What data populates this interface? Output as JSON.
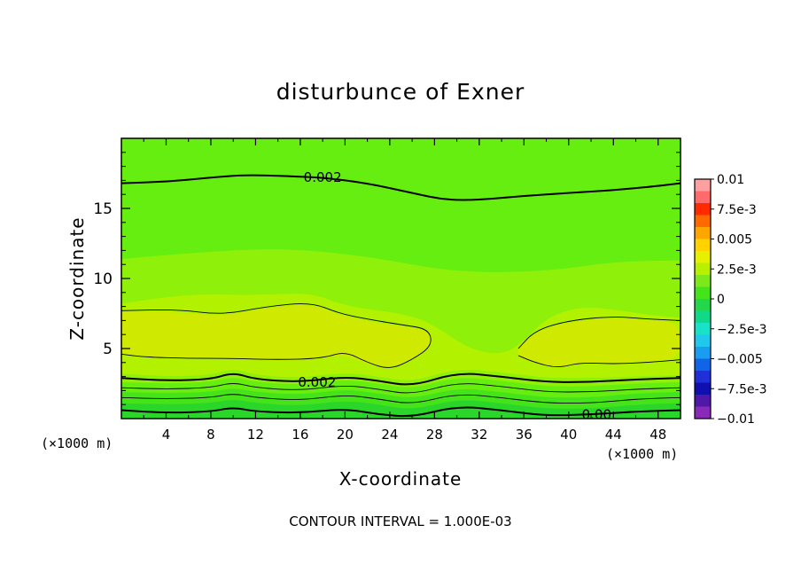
{
  "chart_data": {
    "type": "heatmap",
    "title": "disturbunce of Exner",
    "xlabel": "X-coordinate",
    "ylabel": "Z-coordinate",
    "x_unit_left": "(×1000 m)",
    "x_unit_right": "(×1000 m)",
    "xlim": [
      0,
      50
    ],
    "ylim": [
      0,
      20
    ],
    "x_ticks": [
      "4",
      "8",
      "12",
      "16",
      "20",
      "24",
      "28",
      "32",
      "36",
      "40",
      "44",
      "48"
    ],
    "x_tick_values": [
      4,
      8,
      12,
      16,
      20,
      24,
      28,
      32,
      36,
      40,
      44,
      48
    ],
    "y_ticks": [
      "5",
      "10",
      "15"
    ],
    "y_tick_values": [
      5,
      10,
      15
    ],
    "contour_interval_text": "CONTOUR INTERVAL = 1.000E-03",
    "contour_labels": [
      {
        "text": "0.002",
        "x": 18,
        "z": 17.2
      },
      {
        "text": "0.002",
        "x": 17.5,
        "z": 2.6
      },
      {
        "text": "0.00",
        "x": 42.5,
        "z": 0.3
      }
    ],
    "bands": [
      {
        "color": "#66ee11",
        "top": [
          [
            0,
            20
          ],
          [
            50,
            20
          ]
        ]
      },
      {
        "color": "#8ff00a",
        "top": [
          [
            0,
            11.4
          ],
          [
            6,
            11.8
          ],
          [
            14,
            12.2
          ],
          [
            22,
            11.6
          ],
          [
            30,
            10.4
          ],
          [
            38,
            10.5
          ],
          [
            44,
            11.2
          ],
          [
            50,
            11.3
          ]
        ]
      },
      {
        "color": "#b2f200",
        "top": [
          [
            0,
            8.2
          ],
          [
            6,
            8.9
          ],
          [
            12,
            8.8
          ],
          [
            17,
            9.0
          ],
          [
            20,
            8.0
          ],
          [
            26,
            7.4
          ],
          [
            28.5,
            6.4
          ],
          [
            31,
            5.0
          ],
          [
            34,
            4.5
          ],
          [
            36,
            5.5
          ],
          [
            38,
            7.2
          ],
          [
            41,
            8.0
          ],
          [
            44,
            7.8
          ],
          [
            47,
            7.4
          ],
          [
            50,
            7.2
          ]
        ]
      },
      {
        "color": "#cfea00",
        "top": [
          [
            0,
            7.6
          ],
          [
            5,
            7.6
          ],
          [
            9,
            7.3
          ],
          [
            13,
            7.9
          ],
          [
            17,
            8.2
          ],
          [
            19.5,
            7.4
          ],
          [
            22,
            6.9
          ],
          [
            25,
            6.6
          ],
          [
            27.5,
            6.3
          ],
          [
            27.8,
            5.2
          ],
          [
            26,
            4.2
          ],
          [
            24,
            3.5
          ],
          [
            22,
            3.9
          ],
          [
            20,
            4.6
          ],
          [
            18,
            4.3
          ],
          [
            14,
            4.1
          ],
          [
            10,
            4.3
          ],
          [
            6,
            4.3
          ],
          [
            2,
            4.4
          ],
          [
            0,
            4.6
          ]
        ]
      },
      {
        "color": "#cfea00",
        "top": [
          [
            35.5,
            5.0
          ],
          [
            37,
            6.2
          ],
          [
            40,
            6.9
          ],
          [
            44,
            7.2
          ],
          [
            47,
            7.0
          ],
          [
            50,
            6.9
          ],
          [
            50,
            4.2
          ],
          [
            47,
            4.1
          ],
          [
            44,
            3.9
          ],
          [
            41,
            4.0
          ],
          [
            39,
            3.6
          ],
          [
            37,
            4.0
          ],
          [
            35.5,
            4.4
          ]
        ]
      },
      {
        "color": "#8ff00a",
        "top": [
          [
            0,
            3.2
          ],
          [
            4,
            3.0
          ],
          [
            8,
            3.1
          ],
          [
            10,
            3.6
          ],
          [
            12,
            3.1
          ],
          [
            16,
            2.9
          ],
          [
            20,
            3.3
          ],
          [
            23,
            3.0
          ],
          [
            26,
            2.6
          ],
          [
            30,
            3.6
          ],
          [
            34,
            3.3
          ],
          [
            38,
            2.9
          ],
          [
            42,
            2.9
          ],
          [
            46,
            3.0
          ],
          [
            50,
            3.1
          ]
        ]
      },
      {
        "color": "#66ee11",
        "top": [
          [
            0,
            2.6
          ],
          [
            4,
            2.5
          ],
          [
            8,
            2.6
          ],
          [
            10,
            3.0
          ],
          [
            12,
            2.6
          ],
          [
            16,
            2.4
          ],
          [
            20,
            2.8
          ],
          [
            23,
            2.5
          ],
          [
            26,
            2.1
          ],
          [
            30,
            3.0
          ],
          [
            34,
            2.7
          ],
          [
            38,
            2.3
          ],
          [
            42,
            2.3
          ],
          [
            46,
            2.5
          ],
          [
            50,
            2.6
          ]
        ]
      },
      {
        "color": "#44e31a",
        "top": [
          [
            0,
            1.9
          ],
          [
            4,
            1.8
          ],
          [
            8,
            1.9
          ],
          [
            10,
            2.2
          ],
          [
            12,
            1.9
          ],
          [
            16,
            1.7
          ],
          [
            20,
            2.1
          ],
          [
            23,
            1.8
          ],
          [
            26,
            1.4
          ],
          [
            30,
            2.2
          ],
          [
            34,
            1.9
          ],
          [
            38,
            1.5
          ],
          [
            42,
            1.5
          ],
          [
            46,
            1.8
          ],
          [
            50,
            1.9
          ]
        ]
      },
      {
        "color": "#2bd62b",
        "top": [
          [
            0,
            1.1
          ],
          [
            4,
            1.0
          ],
          [
            8,
            1.1
          ],
          [
            10,
            1.4
          ],
          [
            12,
            1.1
          ],
          [
            16,
            0.9
          ],
          [
            20,
            1.3
          ],
          [
            23,
            1.0
          ],
          [
            26,
            0.6
          ],
          [
            30,
            1.4
          ],
          [
            34,
            1.1
          ],
          [
            38,
            0.7
          ],
          [
            42,
            0.7
          ],
          [
            46,
            1.0
          ],
          [
            50,
            1.1
          ]
        ]
      }
    ],
    "contours": [
      {
        "weight": "thick",
        "points": [
          [
            0,
            16.8
          ],
          [
            4,
            16.9
          ],
          [
            8,
            17.2
          ],
          [
            11,
            17.4
          ],
          [
            15,
            17.3
          ],
          [
            18,
            17.2
          ],
          [
            22,
            16.8
          ],
          [
            26,
            16.1
          ],
          [
            29,
            15.6
          ],
          [
            32,
            15.6
          ],
          [
            36,
            15.9
          ],
          [
            40,
            16.1
          ],
          [
            44,
            16.3
          ],
          [
            48,
            16.6
          ],
          [
            50,
            16.8
          ]
        ]
      },
      {
        "weight": "thin",
        "points": [
          [
            0,
            7.7
          ],
          [
            5,
            7.8
          ],
          [
            9,
            7.4
          ],
          [
            13,
            8.0
          ],
          [
            17,
            8.3
          ],
          [
            19.5,
            7.5
          ],
          [
            22,
            7.1
          ],
          [
            25,
            6.7
          ],
          [
            27.5,
            6.4
          ],
          [
            27.8,
            5.2
          ],
          [
            26,
            4.2
          ],
          [
            24,
            3.5
          ],
          [
            22,
            4.0
          ],
          [
            20,
            4.8
          ],
          [
            18,
            4.3
          ],
          [
            14,
            4.2
          ],
          [
            10,
            4.3
          ],
          [
            6,
            4.3
          ],
          [
            2,
            4.4
          ],
          [
            0,
            4.6
          ]
        ]
      },
      {
        "weight": "thin",
        "points": [
          [
            35.5,
            5.0
          ],
          [
            37,
            6.3
          ],
          [
            40,
            7.0
          ],
          [
            44,
            7.3
          ],
          [
            47,
            7.1
          ],
          [
            50,
            7.0
          ]
        ]
      },
      {
        "weight": "thin",
        "points": [
          [
            35.5,
            4.5
          ],
          [
            37,
            4.0
          ],
          [
            39,
            3.6
          ],
          [
            41,
            4.0
          ],
          [
            44,
            3.9
          ],
          [
            47,
            4.0
          ],
          [
            50,
            4.2
          ]
        ]
      },
      {
        "weight": "thick",
        "points": [
          [
            0,
            2.9
          ],
          [
            4,
            2.7
          ],
          [
            8,
            2.8
          ],
          [
            10,
            3.3
          ],
          [
            12,
            2.8
          ],
          [
            16,
            2.6
          ],
          [
            20,
            3.0
          ],
          [
            23,
            2.7
          ],
          [
            26,
            2.3
          ],
          [
            30,
            3.3
          ],
          [
            34,
            3.0
          ],
          [
            38,
            2.6
          ],
          [
            42,
            2.6
          ],
          [
            46,
            2.8
          ],
          [
            50,
            2.9
          ]
        ]
      },
      {
        "weight": "thin",
        "points": [
          [
            0,
            2.2
          ],
          [
            4,
            2.1
          ],
          [
            8,
            2.2
          ],
          [
            10,
            2.6
          ],
          [
            12,
            2.2
          ],
          [
            16,
            2.0
          ],
          [
            20,
            2.4
          ],
          [
            23,
            2.1
          ],
          [
            26,
            1.7
          ],
          [
            30,
            2.6
          ],
          [
            34,
            2.3
          ],
          [
            38,
            1.9
          ],
          [
            42,
            1.9
          ],
          [
            46,
            2.1
          ],
          [
            50,
            2.2
          ]
        ]
      },
      {
        "weight": "thin",
        "points": [
          [
            0,
            1.5
          ],
          [
            4,
            1.4
          ],
          [
            8,
            1.5
          ],
          [
            10,
            1.8
          ],
          [
            12,
            1.5
          ],
          [
            16,
            1.3
          ],
          [
            20,
            1.7
          ],
          [
            23,
            1.4
          ],
          [
            26,
            1.0
          ],
          [
            30,
            1.8
          ],
          [
            34,
            1.5
          ],
          [
            38,
            1.1
          ],
          [
            42,
            1.1
          ],
          [
            46,
            1.4
          ],
          [
            50,
            1.5
          ]
        ]
      },
      {
        "weight": "thick",
        "points": [
          [
            0,
            0.6
          ],
          [
            4,
            0.4
          ],
          [
            8,
            0.5
          ],
          [
            10,
            0.8
          ],
          [
            12,
            0.5
          ],
          [
            16,
            0.4
          ],
          [
            20,
            0.7
          ],
          [
            23,
            0.3
          ],
          [
            26,
            0.1
          ],
          [
            30,
            0.9
          ],
          [
            34,
            0.6
          ],
          [
            38,
            0.2
          ],
          [
            42,
            0.3
          ],
          [
            46,
            0.5
          ],
          [
            50,
            0.6
          ]
        ]
      }
    ],
    "colorbar": {
      "labels": [
        "0.01",
        "7.5e-3",
        "0.005",
        "2.5e-3",
        "0",
        "−2.5e-3",
        "−0.005",
        "−7.5e-3",
        "−0.01"
      ],
      "colors": [
        "#ff9fa0",
        "#ff6b6b",
        "#ff2a00",
        "#ff6a00",
        "#ffa500",
        "#ffd200",
        "#e6f000",
        "#b9f000",
        "#7de81a",
        "#44e31a",
        "#22d84a",
        "#11d98a",
        "#18e2c8",
        "#20c8ee",
        "#1a9cf0",
        "#1064e8",
        "#2030d8",
        "#1010b0",
        "#5018a8",
        "#8a2ab8"
      ]
    }
  }
}
